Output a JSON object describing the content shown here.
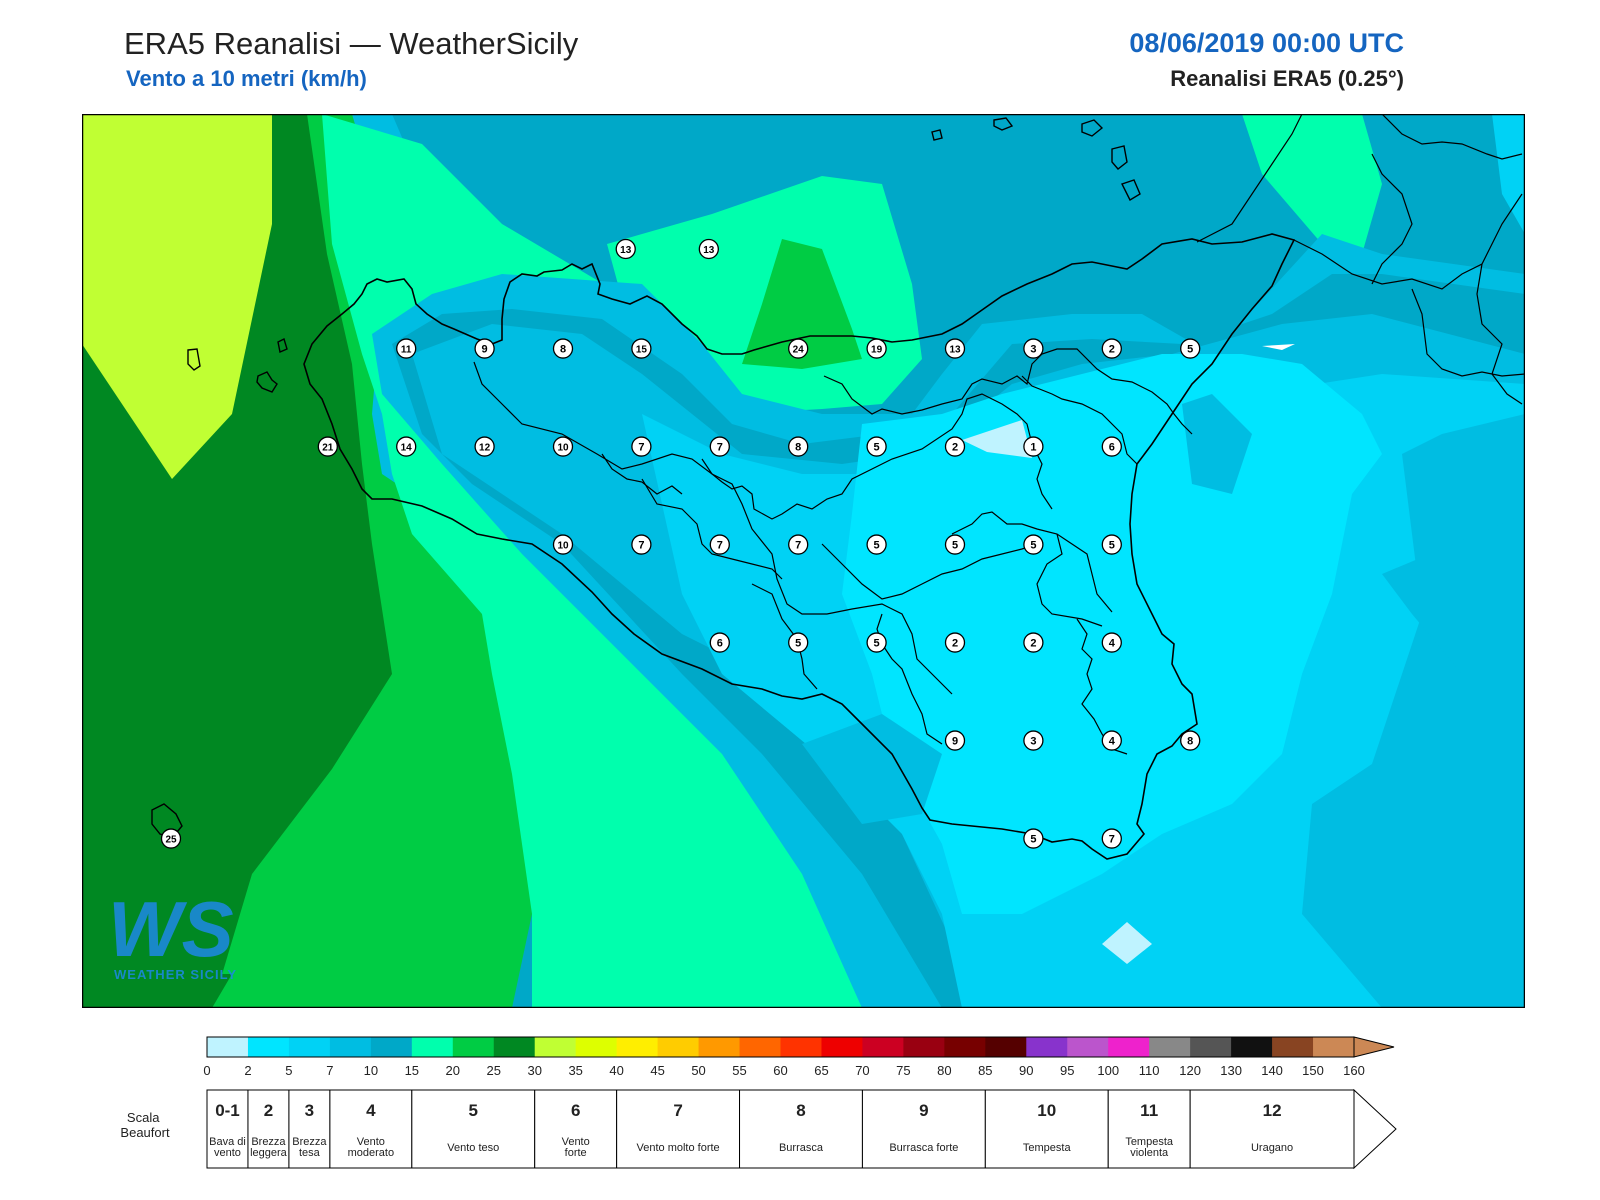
{
  "header": {
    "title": "ERA5 Reanalisi — WeatherSicily",
    "subtitle": "Vento a 10 metri (km/h)",
    "datetime": "08/06/2019 00:00 UTC",
    "model": "Reanalisi ERA5 (0.25°)"
  },
  "logo": {
    "text": "WEATHER SICILY",
    "mark": "WS"
  },
  "stations": [
    {
      "v": "13",
      "lon": 14.35,
      "lat": 38.82
    },
    {
      "v": "13",
      "lon": 14.88,
      "lat": 38.82
    },
    {
      "v": "11",
      "lon": 12.95,
      "lat": 38.18
    },
    {
      "v": "9",
      "lon": 13.45,
      "lat": 38.18
    },
    {
      "v": "8",
      "lon": 13.95,
      "lat": 38.18
    },
    {
      "v": "15",
      "lon": 14.45,
      "lat": 38.18
    },
    {
      "v": "24",
      "lon": 15.45,
      "lat": 38.18
    },
    {
      "v": "19",
      "lon": 15.95,
      "lat": 38.18
    },
    {
      "v": "13",
      "lon": 16.45,
      "lat": 38.18
    },
    {
      "v": "3",
      "lon": 16.95,
      "lat": 38.18
    },
    {
      "v": "2",
      "lon": 17.45,
      "lat": 38.18
    },
    {
      "v": "5",
      "lon": 17.95,
      "lat": 38.18
    },
    {
      "v": "21",
      "lon": 12.45,
      "lat": 37.55
    },
    {
      "v": "14",
      "lon": 12.95,
      "lat": 37.55
    },
    {
      "v": "12",
      "lon": 13.45,
      "lat": 37.55
    },
    {
      "v": "10",
      "lon": 13.95,
      "lat": 37.55
    },
    {
      "v": "7",
      "lon": 14.45,
      "lat": 37.55
    },
    {
      "v": "7",
      "lon": 14.95,
      "lat": 37.55
    },
    {
      "v": "8",
      "lon": 15.45,
      "lat": 37.55
    },
    {
      "v": "5",
      "lon": 15.95,
      "lat": 37.55
    },
    {
      "v": "2",
      "lon": 16.45,
      "lat": 37.55
    },
    {
      "v": "1",
      "lon": 16.95,
      "lat": 37.55
    },
    {
      "v": "6",
      "lon": 17.45,
      "lat": 37.55
    },
    {
      "v": "10",
      "lon": 13.95,
      "lat": 36.92
    },
    {
      "v": "7",
      "lon": 14.45,
      "lat": 36.92
    },
    {
      "v": "7",
      "lon": 14.95,
      "lat": 36.92
    },
    {
      "v": "7",
      "lon": 15.45,
      "lat": 36.92
    },
    {
      "v": "5",
      "lon": 15.95,
      "lat": 36.92
    },
    {
      "v": "5",
      "lon": 16.45,
      "lat": 36.92
    },
    {
      "v": "5",
      "lon": 16.95,
      "lat": 36.92
    },
    {
      "v": "5",
      "lon": 17.45,
      "lat": 36.92
    },
    {
      "v": "6",
      "lon": 14.95,
      "lat": 36.29
    },
    {
      "v": "5",
      "lon": 15.45,
      "lat": 36.29
    },
    {
      "v": "5",
      "lon": 15.95,
      "lat": 36.29
    },
    {
      "v": "2",
      "lon": 16.45,
      "lat": 36.29
    },
    {
      "v": "2",
      "lon": 16.95,
      "lat": 36.29
    },
    {
      "v": "4",
      "lon": 17.45,
      "lat": 36.29
    },
    {
      "v": "9",
      "lon": 16.45,
      "lat": 35.66
    },
    {
      "v": "3",
      "lon": 16.95,
      "lat": 35.66
    },
    {
      "v": "4",
      "lon": 17.45,
      "lat": 35.66
    },
    {
      "v": "8",
      "lon": 17.95,
      "lat": 35.66
    },
    {
      "v": "5",
      "lon": 16.95,
      "lat": 35.03
    },
    {
      "v": "7",
      "lon": 17.45,
      "lat": 35.03
    },
    {
      "v": "25",
      "lon": 11.45,
      "lat": 35.03
    }
  ],
  "colorbar": {
    "ticks": [
      "0",
      "2",
      "5",
      "7",
      "10",
      "15",
      "20",
      "25",
      "30",
      "35",
      "40",
      "45",
      "50",
      "55",
      "60",
      "65",
      "70",
      "75",
      "80",
      "85",
      "90",
      "95",
      "100",
      "110",
      "120",
      "130",
      "140",
      "150",
      "160"
    ],
    "colors": [
      "#bff3ff",
      "#00e5ff",
      "#00d2f5",
      "#00bde2",
      "#00a8c8",
      "#00ffad",
      "#00cc44",
      "#008822",
      "#c0ff33",
      "#ddff00",
      "#ffee00",
      "#ffcc00",
      "#ff9900",
      "#ff6600",
      "#ff3300",
      "#ee0000",
      "#cc0022",
      "#990011",
      "#770000",
      "#550000",
      "#8833cc",
      "#bb55cc",
      "#ee22cc",
      "#888888",
      "#555555",
      "#111111",
      "#884422",
      "#cc8855"
    ]
  },
  "beaufort": {
    "title": "Scala Beaufort",
    "levels": [
      {
        "num": "0-1",
        "name": "Bava di vento"
      },
      {
        "num": "2",
        "name": "Brezza leggera"
      },
      {
        "num": "3",
        "name": "Brezza tesa"
      },
      {
        "num": "4",
        "name": "Vento moderato"
      },
      {
        "num": "5",
        "name": "Vento teso"
      },
      {
        "num": "6",
        "name": "Vento forte"
      },
      {
        "num": "7",
        "name": "Vento molto forte"
      },
      {
        "num": "8",
        "name": "Burrasca"
      },
      {
        "num": "9",
        "name": "Burrasca forte"
      },
      {
        "num": "10",
        "name": "Tempesta"
      },
      {
        "num": "11",
        "name": "Tempesta violenta"
      },
      {
        "num": "12",
        "name": "Uragano"
      }
    ]
  }
}
